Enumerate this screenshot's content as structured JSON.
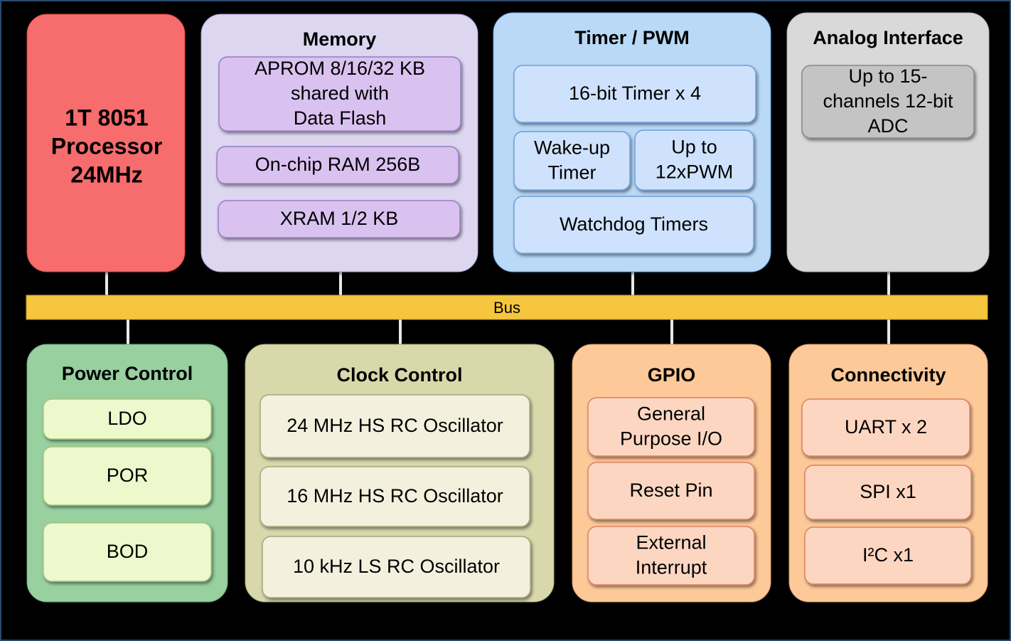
{
  "processor": [
    "1T 8051",
    "Processor",
    "24MHz"
  ],
  "bus": "Bus",
  "blocks": [
    {
      "title": "Memory",
      "items": [
        [
          "APROM 8/16/32 KB",
          "shared with",
          "Data Flash"
        ],
        [
          "On-chip RAM 256B"
        ],
        [
          "XRAM 1/2 KB"
        ]
      ]
    },
    {
      "title": "Timer / PWM",
      "items": [
        [
          "16-bit Timer x 4"
        ],
        [
          "Wake-up",
          "Timer"
        ],
        [
          "Up to",
          "12xPWM"
        ],
        [
          "Watchdog Timers"
        ]
      ]
    },
    {
      "title": "Analog Interface",
      "items": [
        [
          "Up to 15-",
          "channels 12-bit",
          "ADC"
        ]
      ]
    },
    {
      "title": "Power Control",
      "items": [
        [
          "LDO"
        ],
        [
          "POR"
        ],
        [
          "BOD"
        ]
      ]
    },
    {
      "title": "Clock Control",
      "items": [
        [
          "24 MHz HS RC Oscillator"
        ],
        [
          "16 MHz HS RC Oscillator"
        ],
        [
          "10 kHz LS RC Oscillator"
        ]
      ]
    },
    {
      "title": "GPIO",
      "items": [
        [
          "General",
          "Purpose I/O"
        ],
        [
          "Reset Pin"
        ],
        [
          "External",
          "Interrupt"
        ]
      ]
    },
    {
      "title": "Connectivity",
      "items": [
        [
          "UART x 2"
        ],
        [
          "SPI x1"
        ],
        [
          "I²C x1"
        ]
      ]
    }
  ]
}
